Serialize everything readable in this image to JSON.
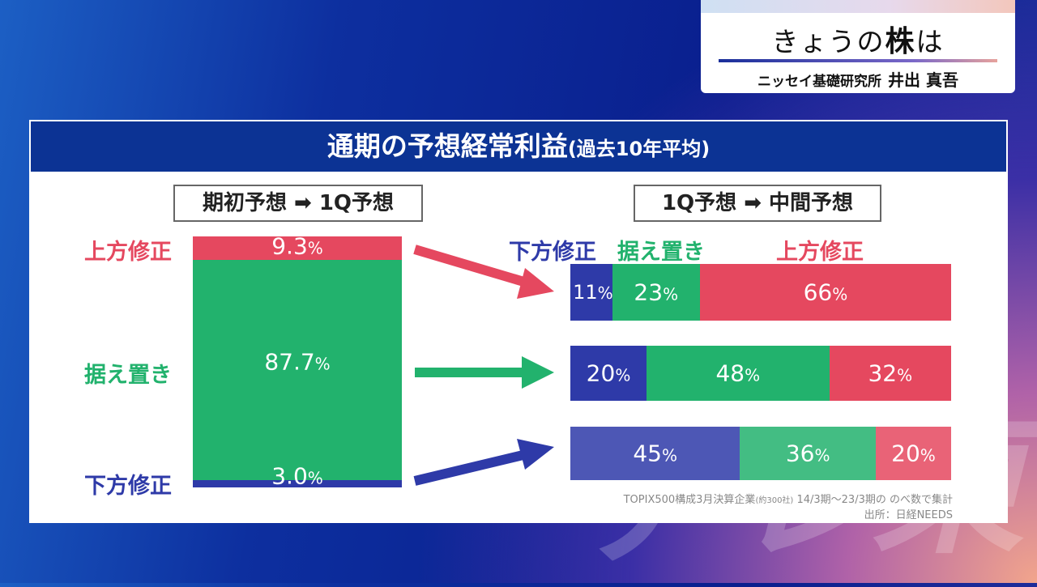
{
  "caption": {
    "title_pre": "きょうの",
    "title_bold": "株",
    "title_post": "は",
    "org": "ニッセイ基礎研究所",
    "name": "井出 真吾"
  },
  "panel": {
    "title": "通期の予想経常利益",
    "subtitle": "(過去10年平均)"
  },
  "colors": {
    "up": "#e5485f",
    "keep": "#22b26d",
    "down": "#2e3aa8",
    "header": "#0c3394"
  },
  "chart_data": [
    {
      "type": "bar",
      "title": "期初予想 ➡ 1Q予想",
      "categories": [
        "上方修正",
        "据え置き",
        "下方修正"
      ],
      "values": [
        9.3,
        87.7,
        3.0
      ],
      "labels": [
        "9.3",
        "87.7",
        "3.0"
      ],
      "unit": "%"
    },
    {
      "type": "bar",
      "stacked": true,
      "horizontal": true,
      "title": "1Q予想 ➡ 中間予想",
      "categories": [
        "上方修正",
        "据え置き",
        "下方修正"
      ],
      "series": [
        {
          "name": "下方修正",
          "values": [
            11,
            20,
            45
          ]
        },
        {
          "name": "据え置き",
          "values": [
            23,
            48,
            36
          ]
        },
        {
          "name": "上方修正",
          "values": [
            66,
            32,
            20
          ]
        }
      ],
      "unit": "%"
    }
  ],
  "source": {
    "line1": "TOPIX500構成3月決算企業",
    "line1_small": "(約300社)",
    "line1_end": "14/3期～23/3期の のべ数で集計",
    "line2": "出所：日経NEEDS"
  }
}
